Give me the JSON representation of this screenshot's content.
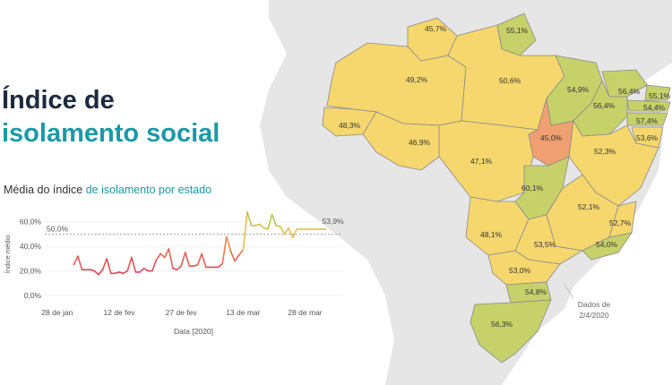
{
  "title": {
    "line1": "Índice de",
    "line2": "isolamento social"
  },
  "subtitle": {
    "prefix": "Média do índice ",
    "highlight": "de isolamento por estado"
  },
  "map": {
    "colors": {
      "ocean": "#ffffff",
      "land": "#e6e6e6",
      "low": "#f0a070",
      "mid": "#f5d76e",
      "high": "#c6d16a"
    },
    "states": [
      {
        "label": "45,7%",
        "tier": "mid"
      },
      {
        "label": "55,1%",
        "tier": "high"
      },
      {
        "label": "49,2%",
        "tier": "mid"
      },
      {
        "label": "50,6%",
        "tier": "mid"
      },
      {
        "label": "54,9%",
        "tier": "high"
      },
      {
        "label": "56,4%",
        "tier": "high"
      },
      {
        "label": "55,1%",
        "tier": "high"
      },
      {
        "label": "56,4%",
        "tier": "high"
      },
      {
        "label": "54,4%",
        "tier": "high"
      },
      {
        "label": "57,4%",
        "tier": "high"
      },
      {
        "label": "53,6%",
        "tier": "mid"
      },
      {
        "label": "48,3%",
        "tier": "mid"
      },
      {
        "label": "46,9%",
        "tier": "mid"
      },
      {
        "label": "45,0%",
        "tier": "low"
      },
      {
        "label": "47,1%",
        "tier": "mid"
      },
      {
        "label": "52,3%",
        "tier": "mid"
      },
      {
        "label": "60,1%",
        "tier": "high"
      },
      {
        "label": "52,1%",
        "tier": "mid"
      },
      {
        "label": "48,1%",
        "tier": "mid"
      },
      {
        "label": "52,7%",
        "tier": "mid"
      },
      {
        "label": "53,5%",
        "tier": "mid"
      },
      {
        "label": "54,0%",
        "tier": "high"
      },
      {
        "label": "53,0%",
        "tier": "mid"
      },
      {
        "label": "54,8%",
        "tier": "high"
      },
      {
        "label": "56,3%",
        "tier": "high"
      }
    ],
    "note": {
      "line1": "Dados de",
      "line2": "2/4/2020"
    }
  },
  "chart_data": {
    "type": "line",
    "ylabel": "Índice médio",
    "xlabel": "Data [2020]",
    "ylim": [
      0,
      70
    ],
    "y_ticks": [
      "0,0%",
      "20,0%",
      "40,0%",
      "60,0%"
    ],
    "y_tick_values": [
      0,
      20,
      40,
      60
    ],
    "x_ticks": [
      "28 de jan",
      "12 de fev",
      "27 de fev",
      "13 de mar",
      "28 de mar"
    ],
    "x_tick_dates": [
      "2020-01-28",
      "2020-02-12",
      "2020-02-27",
      "2020-03-13",
      "2020-03-28"
    ],
    "reference_line": {
      "value": 50,
      "label": "50,0%"
    },
    "last_label": "53,9%",
    "x": [
      "2020-02-01",
      "2020-02-02",
      "2020-02-03",
      "2020-02-04",
      "2020-02-05",
      "2020-02-06",
      "2020-02-07",
      "2020-02-08",
      "2020-02-09",
      "2020-02-10",
      "2020-02-11",
      "2020-02-12",
      "2020-02-13",
      "2020-02-14",
      "2020-02-15",
      "2020-02-16",
      "2020-02-17",
      "2020-02-18",
      "2020-02-19",
      "2020-02-20",
      "2020-02-21",
      "2020-02-22",
      "2020-02-23",
      "2020-02-24",
      "2020-02-25",
      "2020-02-26",
      "2020-02-27",
      "2020-02-28",
      "2020-02-29",
      "2020-03-01",
      "2020-03-02",
      "2020-03-03",
      "2020-03-04",
      "2020-03-05",
      "2020-03-06",
      "2020-03-07",
      "2020-03-08",
      "2020-03-09",
      "2020-03-10",
      "2020-03-11",
      "2020-03-12",
      "2020-03-13",
      "2020-03-14",
      "2020-03-15",
      "2020-03-16",
      "2020-03-17",
      "2020-03-18",
      "2020-03-19",
      "2020-03-20",
      "2020-03-21",
      "2020-03-22",
      "2020-03-23",
      "2020-03-24",
      "2020-03-25",
      "2020-03-26",
      "2020-03-27",
      "2020-03-28",
      "2020-03-29",
      "2020-03-30",
      "2020-03-31",
      "2020-04-01",
      "2020-04-02"
    ],
    "values": [
      25,
      32,
      21,
      21,
      21,
      20,
      17,
      21,
      30,
      18,
      18,
      19,
      18,
      20,
      31,
      19,
      19,
      22,
      20,
      20,
      29,
      34,
      31,
      38,
      22,
      21,
      24,
      35,
      24,
      24,
      25,
      34,
      23,
      23,
      23,
      23,
      26,
      48,
      36,
      28,
      33,
      37,
      68,
      57,
      57,
      58,
      55,
      54,
      66,
      57,
      56,
      50,
      55,
      47,
      54,
      53.9,
      54,
      54,
      54,
      54,
      54,
      53.9
    ]
  }
}
